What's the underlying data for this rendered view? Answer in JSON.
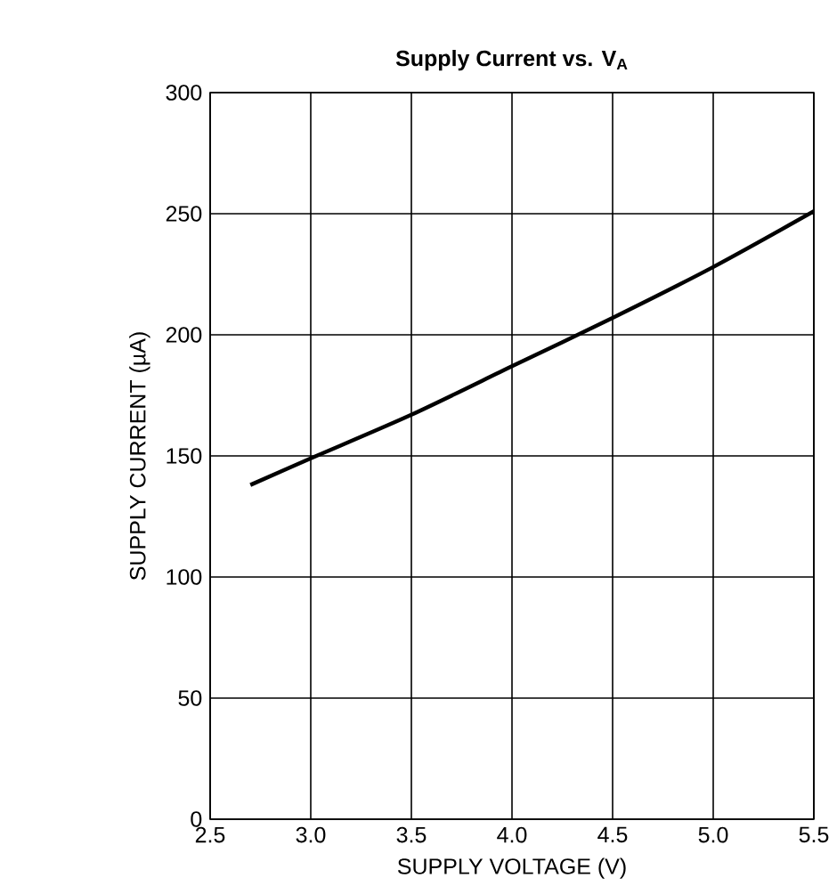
{
  "chart_data": {
    "type": "line",
    "title": "Supply Current vs. V$_{A}$",
    "xlabel": "SUPPLY VOLTAGE (V)",
    "ylabel": "SUPPLY CURRENT (µA)",
    "x": [
      2.7,
      3.0,
      3.5,
      4.0,
      4.5,
      5.0,
      5.5
    ],
    "series": [
      {
        "color": "#000000",
        "values": [
          138,
          149,
          167,
          187,
          207,
          228,
          251
        ]
      }
    ],
    "xlim": [
      2.5,
      5.5
    ],
    "xticks": [
      2.5,
      {
        "value": 3,
        "label": "3.0"
      },
      3.5,
      {
        "value": 4,
        "label": "4.0"
      },
      4.5,
      {
        "value": 5,
        "label": "5.0"
      },
      5.5
    ],
    "ylim": [
      0,
      300
    ],
    "yticks": [
      0,
      50,
      100,
      150,
      200,
      250,
      300
    ],
    "grid": true,
    "marker": "none",
    "line_style": "solid"
  }
}
